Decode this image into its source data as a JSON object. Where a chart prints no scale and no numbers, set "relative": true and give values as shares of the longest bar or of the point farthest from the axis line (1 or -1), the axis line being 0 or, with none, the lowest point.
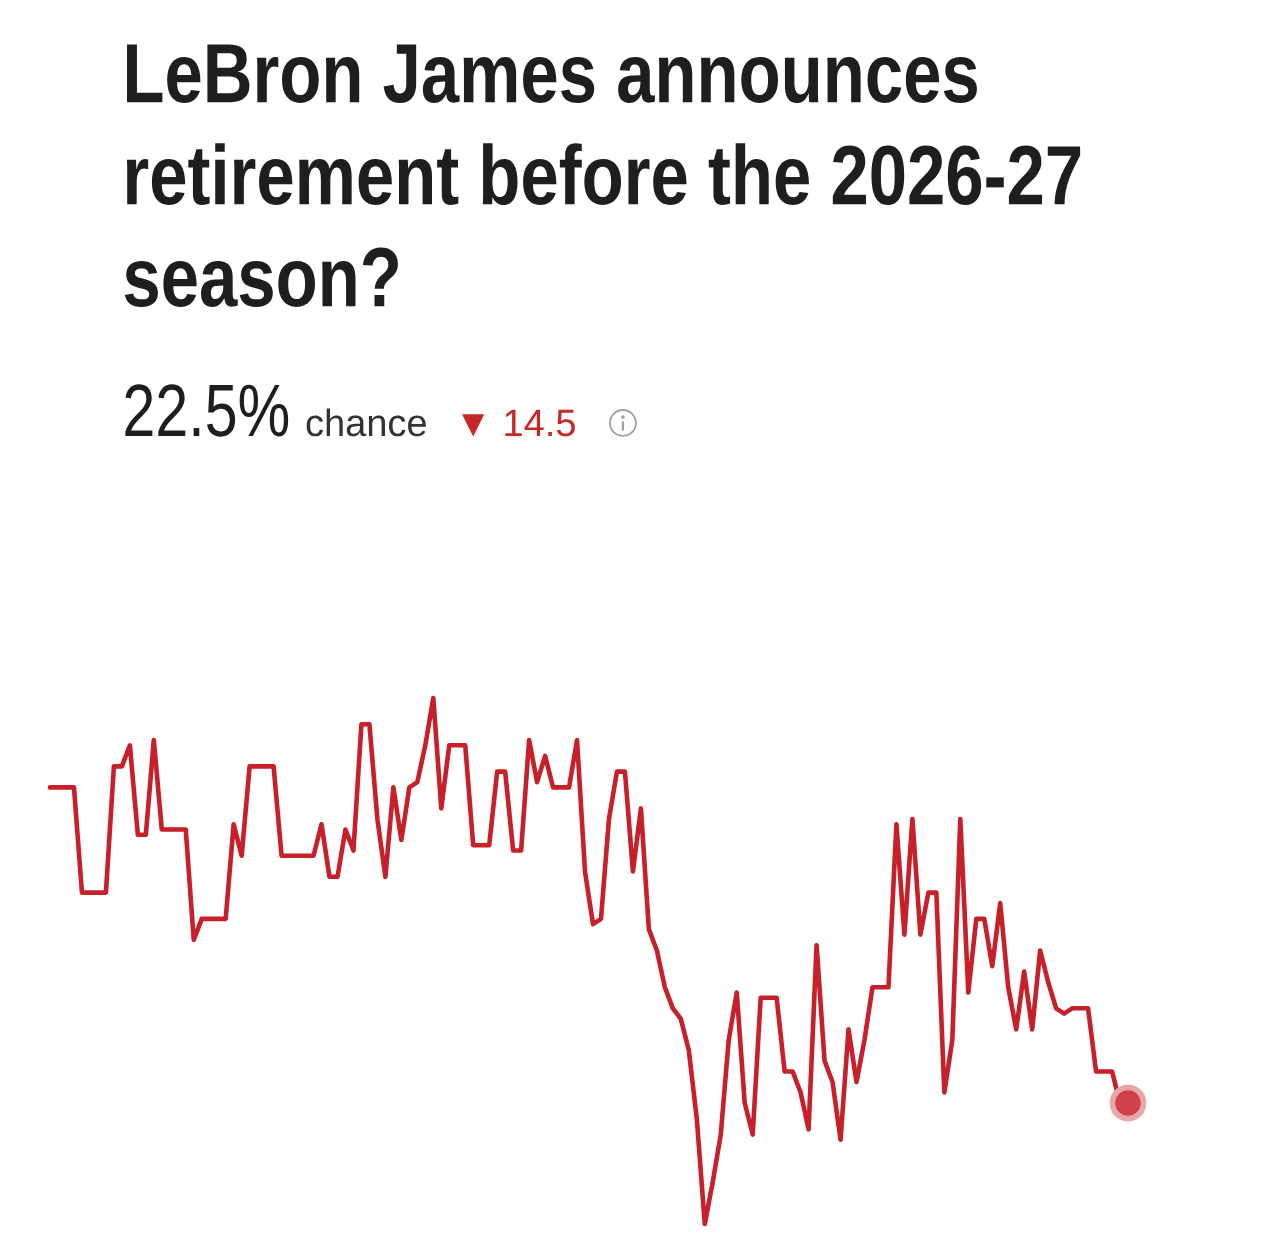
{
  "chart_data": {
    "type": "line",
    "title": "LeBron James announces retirement before the 2026-27 season?",
    "annotations": [
      "22.5%",
      "chance",
      "▼ 14.5"
    ],
    "relative": true,
    "line_style": "solid",
    "categories": [
      null,
      null,
      null,
      null,
      null,
      null,
      null,
      null,
      null,
      null,
      null,
      null,
      null,
      null,
      null,
      null,
      null,
      null,
      null,
      null,
      null,
      null,
      null,
      null,
      null,
      null,
      null,
      null,
      null,
      null,
      null,
      null,
      null,
      null,
      null,
      null,
      null,
      null,
      null,
      null,
      null,
      null,
      null,
      null,
      null,
      null,
      null,
      null,
      null,
      null,
      null,
      null,
      null,
      null,
      null,
      null,
      null,
      null,
      null,
      null,
      null,
      null,
      null,
      null,
      null,
      null,
      null,
      null,
      null,
      null,
      null,
      null,
      null,
      null,
      null,
      null,
      null,
      null,
      null,
      null,
      null,
      null,
      null,
      null,
      null,
      null,
      null,
      null,
      null,
      null,
      null,
      null,
      null,
      null,
      null,
      null,
      null,
      null,
      null,
      null,
      null,
      null,
      null,
      null,
      null,
      null,
      null,
      null,
      null,
      null,
      null,
      null,
      null,
      null,
      null,
      null,
      null,
      null,
      null,
      null,
      null,
      null,
      null,
      null,
      null,
      null,
      null,
      null,
      null,
      null,
      null,
      null,
      null,
      null,
      null,
      null
    ],
    "series": [
      {
        "color": "#c8202a",
        "values": [
          0.83,
          0.83,
          0.83,
          0.83,
          0.63,
          0.63,
          0.63,
          0.63,
          0.87,
          0.87,
          0.91,
          0.74,
          0.74,
          0.92,
          0.75,
          0.75,
          0.75,
          0.75,
          0.54,
          0.58,
          0.58,
          0.58,
          0.58,
          0.76,
          0.7,
          0.87,
          0.87,
          0.87,
          0.87,
          0.7,
          0.7,
          0.7,
          0.7,
          0.7,
          0.76,
          0.66,
          0.66,
          0.75,
          0.71,
          0.95,
          0.95,
          0.77,
          0.66,
          0.83,
          0.73,
          0.83,
          0.84,
          0.91,
          1,
          0.79,
          0.91,
          0.91,
          0.91,
          0.72,
          0.72,
          0.72,
          0.86,
          0.86,
          0.71,
          0.71,
          0.92,
          0.84,
          0.89,
          0.83,
          0.83,
          0.83,
          0.92,
          0.67,
          0.57,
          0.58,
          0.77,
          0.86,
          0.86,
          0.67,
          0.79,
          0.56,
          0.52,
          0.45,
          0.41,
          0.39,
          0.33,
          0.2,
          0,
          0.08,
          0.17,
          0.35,
          0.44,
          0.23,
          0.17,
          0.43,
          0.43,
          0.43,
          0.29,
          0.29,
          0.25,
          0.18,
          0.53,
          0.31,
          0.27,
          0.16,
          0.37,
          0.27,
          0.35,
          0.45,
          0.45,
          0.45,
          0.76,
          0.55,
          0.77,
          0.55,
          0.63,
          0.63,
          0.25,
          0.35,
          0.77,
          0.44,
          0.58,
          0.58,
          0.49,
          0.61,
          0.45,
          0.37,
          0.48,
          0.37,
          0.52,
          0.46,
          0.41,
          0.4,
          0.41,
          0.41,
          0.41,
          0.29,
          0.29,
          0.29,
          0.23,
          0.23
        ]
      }
    ]
  }
}
